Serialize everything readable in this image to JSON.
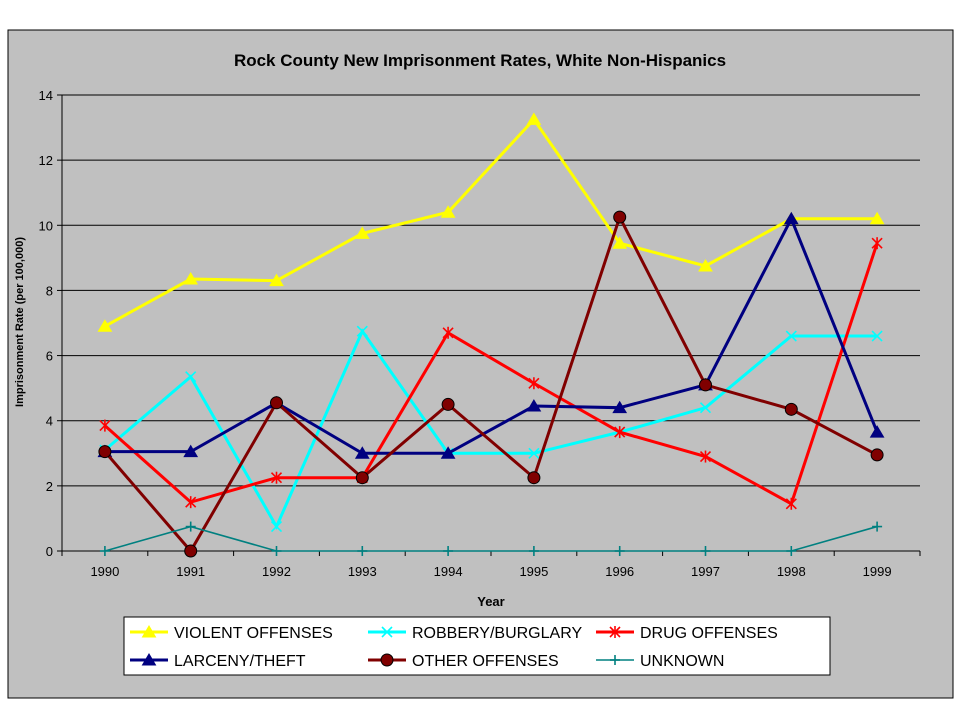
{
  "page": {
    "background": "#ffffff",
    "chart_area_color": "#c0c0c0",
    "plot_area_color": "#c0c0c0",
    "legend_background": "#ffffff"
  },
  "chart_data": {
    "type": "line",
    "title": "Rock County New Imprisonment Rates, White Non-Hispanics",
    "xlabel": "Year",
    "ylabel": "Imprisonment Rate (per 100,000)",
    "ylim": [
      0,
      14
    ],
    "yticks": [
      0,
      2,
      4,
      6,
      8,
      10,
      12,
      14
    ],
    "grid": true,
    "legend_position": "bottom",
    "categories": [
      "1990",
      "1991",
      "1992",
      "1993",
      "1994",
      "1995",
      "1996",
      "1997",
      "1998",
      "1999"
    ],
    "series": [
      {
        "name": "VIOLENT OFFENSES",
        "color": "#ffff00",
        "marker": "triangle",
        "values": [
          6.9,
          8.35,
          8.3,
          9.75,
          10.4,
          13.25,
          9.45,
          8.75,
          10.2,
          10.2
        ]
      },
      {
        "name": "ROBBERY/BURGLARY",
        "color": "#00ffff",
        "marker": "x",
        "values": [
          3.1,
          5.35,
          0.75,
          6.75,
          3.0,
          3.0,
          3.65,
          4.4,
          6.6,
          6.6
        ]
      },
      {
        "name": "DRUG OFFENSES",
        "color": "#ff0000",
        "marker": "star",
        "values": [
          3.85,
          1.5,
          2.25,
          2.25,
          6.7,
          5.15,
          3.65,
          2.9,
          1.45,
          9.45
        ]
      },
      {
        "name": "LARCENY/THEFT",
        "color": "#000080",
        "marker": "triangle",
        "values": [
          3.05,
          3.05,
          4.55,
          3.0,
          3.0,
          4.45,
          4.4,
          5.1,
          10.2,
          3.65
        ]
      },
      {
        "name": "OTHER OFFENSES",
        "color": "#800000",
        "marker": "circle",
        "values": [
          3.05,
          0.0,
          4.55,
          2.25,
          4.5,
          2.25,
          10.25,
          5.1,
          4.35,
          2.95
        ]
      },
      {
        "name": "UNKNOWN",
        "color": "#008080",
        "marker": "plus",
        "values": [
          0.0,
          0.75,
          0.0,
          0.0,
          0.0,
          0.0,
          0.0,
          0.0,
          0.0,
          0.75
        ]
      }
    ]
  }
}
